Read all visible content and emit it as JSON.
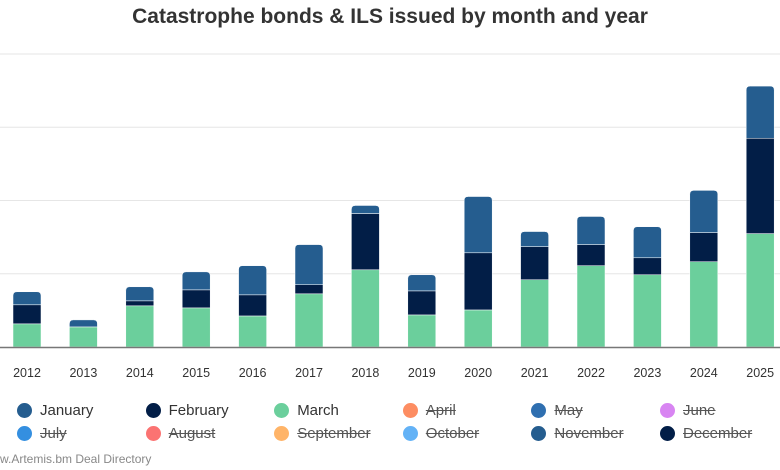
{
  "chart_data": {
    "type": "bar",
    "stacked": true,
    "title": "Catastrophe bonds & ILS issued by month and year",
    "xlabel": "",
    "ylabel": "",
    "ylim": [
      0,
      20000
    ],
    "grid": true,
    "legend_position": "bottom",
    "categories": [
      "2012",
      "2013",
      "2014",
      "2015",
      "2016",
      "2017",
      "2018",
      "2019",
      "2020",
      "2021",
      "2022",
      "2023",
      "2024",
      "2025"
    ],
    "series": [
      {
        "name": "March",
        "color": "#6bcf9c",
        "visible": true,
        "values": [
          1580,
          1370,
          2810,
          2670,
          2120,
          3630,
          5270,
          2190,
          2530,
          4590,
          5550,
          4930,
          5820,
          7740
        ]
      },
      {
        "name": "February",
        "color": "#021e47",
        "visible": true,
        "values": [
          1300,
          0,
          340,
          1230,
          1440,
          620,
          3840,
          1640,
          3900,
          2260,
          1440,
          1160,
          1990,
          6510
        ]
      },
      {
        "name": "January",
        "color": "#255d8f",
        "visible": true,
        "values": [
          890,
          480,
          960,
          1230,
          1990,
          2740,
          550,
          1100,
          3840,
          1030,
          1920,
          2120,
          2880,
          3560
        ]
      }
    ],
    "legend": [
      {
        "name": "January",
        "color": "#255d8f",
        "visible": true
      },
      {
        "name": "February",
        "color": "#021e47",
        "visible": true
      },
      {
        "name": "March",
        "color": "#6bcf9c",
        "visible": true
      },
      {
        "name": "April",
        "color": "#fd8d62",
        "visible": false
      },
      {
        "name": "May",
        "color": "#2f6fb0",
        "visible": false
      },
      {
        "name": "June",
        "color": "#d885f2",
        "visible": false
      },
      {
        "name": "July",
        "color": "#348fe0",
        "visible": false
      },
      {
        "name": "August",
        "color": "#fb7372",
        "visible": false
      },
      {
        "name": "September",
        "color": "#ffb468",
        "visible": false
      },
      {
        "name": "October",
        "color": "#63b2f6",
        "visible": false
      },
      {
        "name": "November",
        "color": "#255d8f",
        "visible": false
      },
      {
        "name": "December",
        "color": "#021e47",
        "visible": false
      }
    ]
  },
  "credit": "w.Artemis.bm Deal Directory"
}
